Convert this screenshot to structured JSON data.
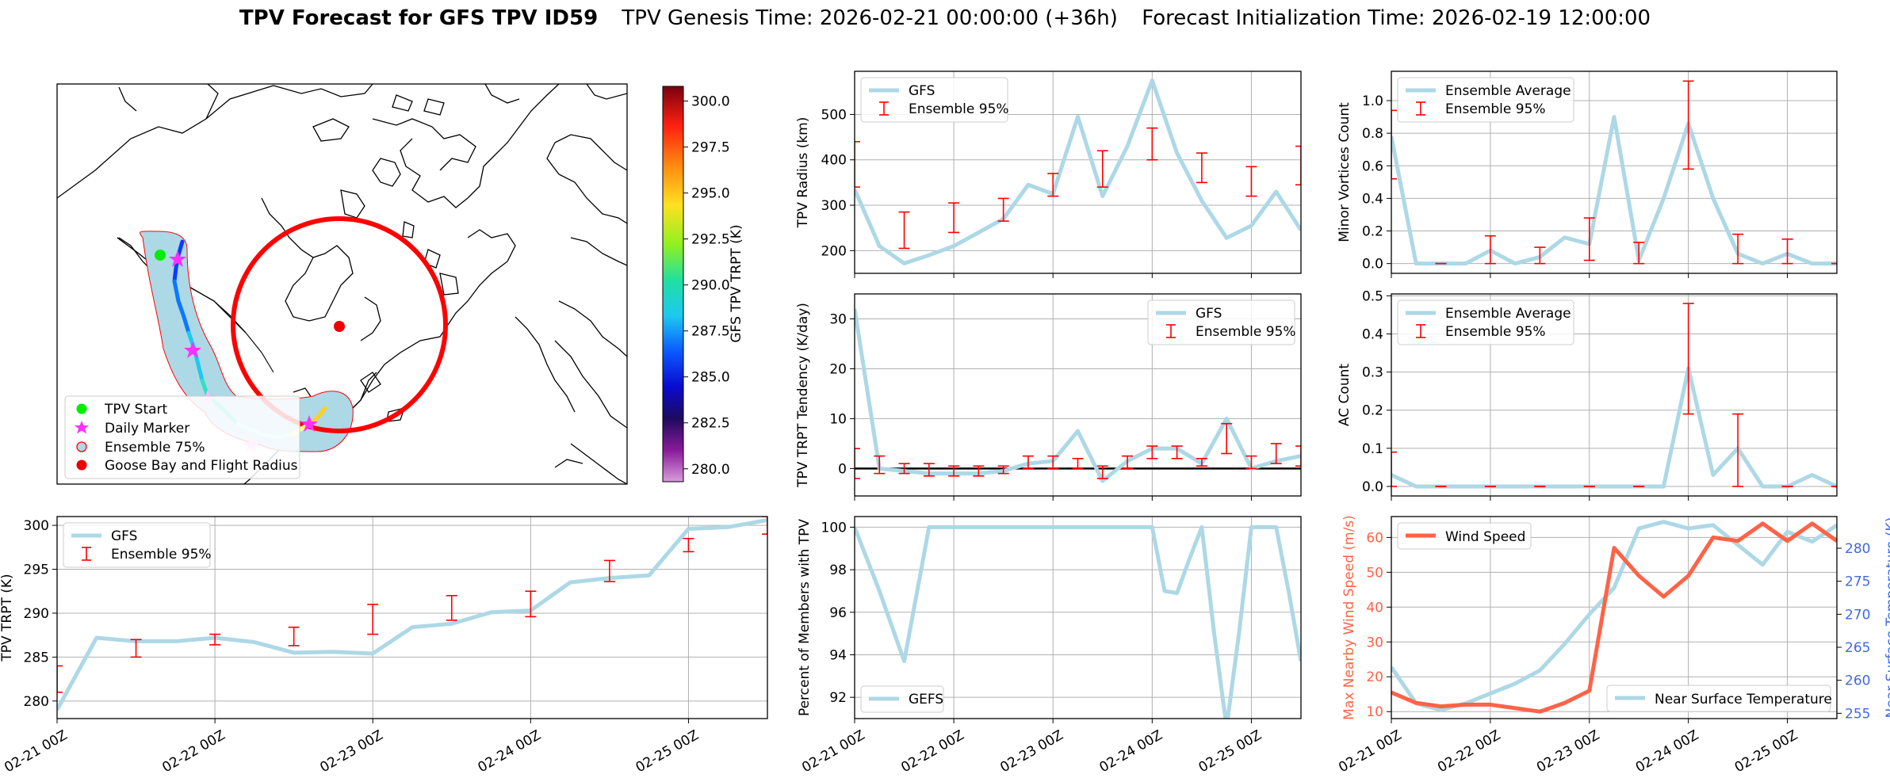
{
  "colors": {
    "gfs_line": "#add8e6",
    "errorbar": "#ff0000",
    "wind": "#ff6347",
    "temp_axis": "#4169e1",
    "grid": "#b0b0b0"
  },
  "header": {
    "title_bold": "TPV Forecast for GFS TPV ID59",
    "title_genesis": "TPV Genesis Time: 2026-02-21 00:00:00 (+36h)",
    "title_init": "Forecast Initialization Time: 2026-02-19 12:00:00"
  },
  "map": {
    "legend": [
      "TPV Start",
      "Daily Marker",
      "Ensemble 75%",
      "Goose Bay and Flight Radius"
    ],
    "colorbar_label": "GFS TPV TRPT (K)",
    "colorbar_ticks": [
      "280.0",
      "282.5",
      "285.0",
      "287.5",
      "290.0",
      "292.5",
      "295.0",
      "297.5",
      "300.0"
    ]
  },
  "chart_data": [
    {
      "id": "radius",
      "type": "line",
      "x": [
        0,
        6,
        12,
        18,
        24,
        30,
        36,
        42,
        48,
        54,
        60,
        66,
        72,
        78,
        84,
        90,
        96,
        102,
        108
      ],
      "values": [
        335,
        210,
        172,
        190,
        210,
        240,
        270,
        345,
        325,
        495,
        320,
        430,
        575,
        415,
        310,
        228,
        255,
        330,
        245
      ],
      "errorbars": {
        "x": [
          0,
          12,
          24,
          36,
          48,
          60,
          72,
          84,
          96,
          108
        ],
        "low": [
          340,
          205,
          240,
          265,
          320,
          340,
          400,
          350,
          320,
          345
        ],
        "high": [
          440,
          285,
          305,
          315,
          370,
          420,
          470,
          415,
          385,
          430
        ]
      },
      "xlim": [
        0,
        108
      ],
      "ylim": [
        150,
        595
      ],
      "yticks": [
        200,
        300,
        400,
        500
      ],
      "ylabel": "TPV Radius (km)",
      "legend": [
        "GFS",
        "Ensemble 95%"
      ],
      "legend_pos": "top-left"
    },
    {
      "id": "minor",
      "type": "line",
      "x": [
        0,
        6,
        12,
        18,
        24,
        30,
        36,
        42,
        48,
        54,
        60,
        66,
        72,
        78,
        84,
        90,
        96,
        102,
        108
      ],
      "values": [
        0.78,
        0.0,
        0.0,
        0.0,
        0.08,
        0.0,
        0.04,
        0.16,
        0.12,
        0.9,
        0.02,
        0.4,
        0.86,
        0.4,
        0.06,
        0.0,
        0.06,
        0.0,
        0.0
      ],
      "errorbars": {
        "x": [
          0,
          12,
          24,
          36,
          48,
          60,
          72,
          84,
          96,
          108
        ],
        "low": [
          0.52,
          0.0,
          0.0,
          0.0,
          0.02,
          0.0,
          0.58,
          0.0,
          0.0,
          0.0
        ],
        "high": [
          0.94,
          0.0,
          0.17,
          0.1,
          0.28,
          0.13,
          1.12,
          0.18,
          0.15,
          0.0
        ]
      },
      "xlim": [
        0,
        108
      ],
      "ylim": [
        -0.06,
        1.18
      ],
      "yticks": [
        0.0,
        0.2,
        0.4,
        0.6,
        0.8,
        1.0
      ],
      "ytick_labels": [
        "0.0",
        "0.2",
        "0.4",
        "0.6",
        "0.8",
        "1.0"
      ],
      "ylabel": "Minor Vortices Count",
      "legend": [
        "Ensemble Average",
        "Ensemble 95%"
      ],
      "legend_pos": "top-left"
    },
    {
      "id": "tendency",
      "type": "line",
      "x": [
        0,
        6,
        12,
        18,
        24,
        30,
        36,
        42,
        48,
        54,
        60,
        66,
        72,
        78,
        84,
        90,
        96,
        102,
        108
      ],
      "values": [
        32,
        0,
        -0.5,
        -1,
        -1,
        -1,
        -0.5,
        1,
        1.5,
        7.5,
        -2.5,
        1.5,
        4,
        4,
        1,
        10,
        0,
        1.5,
        2.5
      ],
      "errorbars": {
        "x": [
          0,
          6,
          12,
          18,
          24,
          30,
          36,
          42,
          48,
          54,
          60,
          66,
          72,
          78,
          84,
          90,
          96,
          102,
          108
        ],
        "low": [
          -2,
          -1,
          -1,
          -1.5,
          -1.5,
          -1.5,
          -1,
          0,
          0,
          0,
          -2,
          0,
          2,
          2,
          0.5,
          3,
          0,
          1,
          0.5
        ],
        "high": [
          4,
          2.5,
          1,
          1,
          0.5,
          0.5,
          0.5,
          2.5,
          2.5,
          2,
          0.5,
          2.5,
          4.5,
          4.5,
          2,
          9,
          2.5,
          5,
          4.5
        ]
      },
      "hline": 0,
      "xlim": [
        0,
        108
      ],
      "ylim": [
        -5.5,
        35
      ],
      "yticks": [
        0,
        10,
        20,
        30
      ],
      "ylabel": "TPV TRPT Tendency (K/day)",
      "legend": [
        "GFS",
        "Ensemble 95%"
      ],
      "legend_pos": "top-right"
    },
    {
      "id": "ac",
      "type": "line",
      "x": [
        0,
        6,
        12,
        18,
        24,
        30,
        36,
        42,
        48,
        54,
        60,
        66,
        72,
        78,
        84,
        90,
        96,
        102,
        108
      ],
      "values": [
        0.03,
        0,
        0,
        0,
        0,
        0,
        0,
        0,
        0,
        0,
        0,
        0,
        0.31,
        0.03,
        0.1,
        0,
        0,
        0.03,
        0
      ],
      "errorbars": {
        "x": [
          0,
          12,
          24,
          36,
          48,
          60,
          72,
          84,
          96,
          108
        ],
        "low": [
          0.0,
          0,
          0,
          0,
          0,
          0,
          0.19,
          0.0,
          0,
          0
        ],
        "high": [
          0.09,
          0,
          0,
          0,
          0,
          0,
          0.48,
          0.19,
          0,
          0
        ]
      },
      "xlim": [
        0,
        108
      ],
      "ylim": [
        -0.025,
        0.505
      ],
      "yticks": [
        0.0,
        0.1,
        0.2,
        0.3,
        0.4,
        0.5
      ],
      "ytick_labels": [
        "0.0",
        "0.1",
        "0.2",
        "0.3",
        "0.4",
        "0.5"
      ],
      "ylabel": "AC Count",
      "legend": [
        "Ensemble Average",
        "Ensemble 95%"
      ],
      "legend_pos": "top-left"
    },
    {
      "id": "trpt",
      "type": "line",
      "x": [
        0,
        6,
        12,
        18,
        24,
        30,
        36,
        42,
        48,
        54,
        60,
        66,
        72,
        78,
        84,
        90,
        96,
        102,
        108
      ],
      "values": [
        279,
        287.2,
        286.8,
        286.8,
        287.2,
        286.7,
        285.5,
        285.6,
        285.4,
        288.4,
        288.8,
        290.1,
        290.3,
        293.5,
        294,
        294.3,
        299.6,
        299.8,
        300.6
      ],
      "errorbars": {
        "x": [
          0,
          12,
          24,
          36,
          48,
          60,
          72,
          84,
          96,
          108
        ],
        "low": [
          281,
          285,
          286.4,
          286.3,
          287.6,
          289.2,
          289.6,
          293.6,
          297,
          299
        ],
        "high": [
          284,
          287,
          287.6,
          288.4,
          291,
          292,
          292.5,
          296,
          298.5,
          301
        ]
      },
      "xlim": [
        0,
        108
      ],
      "ylim": [
        278,
        301
      ],
      "yticks": [
        280,
        285,
        290,
        295,
        300
      ],
      "ylabel": "TPV TRPT (K)",
      "legend": [
        "GFS",
        "Ensemble 95%"
      ],
      "legend_pos": "top-left"
    },
    {
      "id": "percent",
      "type": "line",
      "x": [
        0,
        6,
        12,
        18,
        24,
        30,
        36,
        42,
        48,
        54,
        60,
        66,
        72,
        75,
        78,
        81,
        84,
        87,
        90,
        93,
        96,
        99,
        102,
        105,
        108
      ],
      "values": [
        100,
        97,
        93.7,
        100,
        100,
        100,
        100,
        100,
        100,
        100,
        100,
        100,
        100,
        97,
        96.9,
        98.5,
        100,
        95,
        90.6,
        95,
        100,
        100,
        100,
        97,
        93.7
      ],
      "xlim": [
        0,
        108
      ],
      "ylim": [
        91,
        100.5
      ],
      "yticks": [
        92,
        94,
        96,
        98,
        100
      ],
      "ylabel": "Percent of Members with TPV",
      "legend": [
        "GEFS"
      ],
      "legend_pos": "bottom-left"
    },
    {
      "id": "wind_temp",
      "type": "line",
      "x": [
        0,
        6,
        12,
        18,
        24,
        30,
        36,
        42,
        48,
        54,
        60,
        66,
        72,
        78,
        84,
        90,
        96,
        102,
        108
      ],
      "wind": [
        15.5,
        12.5,
        11.5,
        12,
        12,
        11,
        10,
        12.5,
        16,
        57,
        49,
        43,
        49,
        60,
        59,
        64,
        59,
        64,
        59
      ],
      "temp": [
        262,
        256.5,
        255.5,
        256.5,
        258,
        259.5,
        261.5,
        265.5,
        270,
        274,
        283,
        284,
        283,
        283.5,
        280.5,
        277.5,
        282.5,
        281,
        283.5
      ],
      "xlim": [
        0,
        108
      ],
      "ylim_wind": [
        8,
        66
      ],
      "ylim_temp": [
        254.2,
        284.8
      ],
      "yticks_wind": [
        10,
        20,
        30,
        40,
        50,
        60
      ],
      "yticks_temp": [
        255,
        260,
        265,
        270,
        275,
        280
      ],
      "ylabel": "Max Nearby Wind Speed (m/s)",
      "ylabel2": "Near Surface Temperature (K)",
      "legend": [
        "Wind Speed",
        "Near Surface Temperature"
      ]
    }
  ],
  "x_tick_labels": [
    "02-21 00Z",
    "02-22 00Z",
    "02-23 00Z",
    "02-24 00Z",
    "02-25 00Z"
  ],
  "x_tick_hours": [
    0,
    24,
    48,
    72,
    96
  ]
}
